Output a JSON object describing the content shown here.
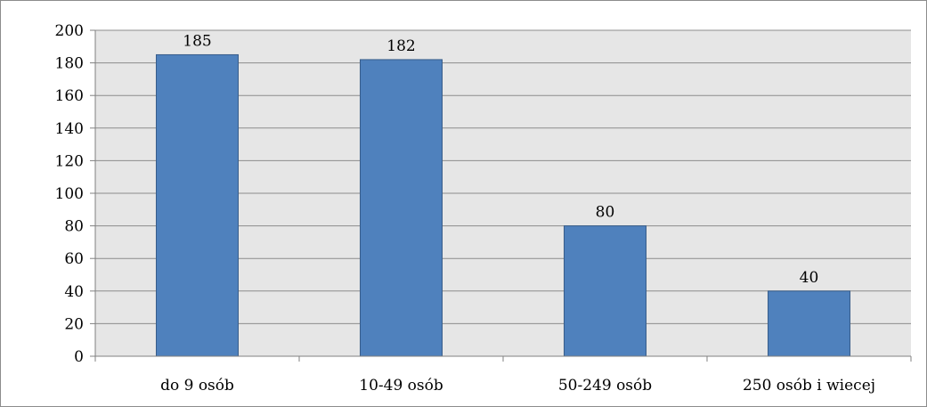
{
  "chart_data": {
    "type": "bar",
    "title": "",
    "xlabel": "",
    "ylabel": "",
    "categories": [
      "do 9 osób",
      "10-49 osób",
      "50-249 osób",
      "250 osób i wiecej"
    ],
    "values": [
      185,
      182,
      80,
      40
    ],
    "data_labels": [
      "185",
      "182",
      "80",
      "40"
    ],
    "ylim": [
      0,
      200
    ],
    "yticks": [
      0,
      20,
      40,
      60,
      80,
      100,
      120,
      140,
      160,
      180,
      200
    ],
    "grid": true,
    "legend": "none",
    "colors": {
      "bar": "#4f81bd",
      "bar_border": "#385d8a",
      "plot_background": "#e6e6e6",
      "gridline": "#8c8c8c",
      "axis": "#808080"
    }
  }
}
